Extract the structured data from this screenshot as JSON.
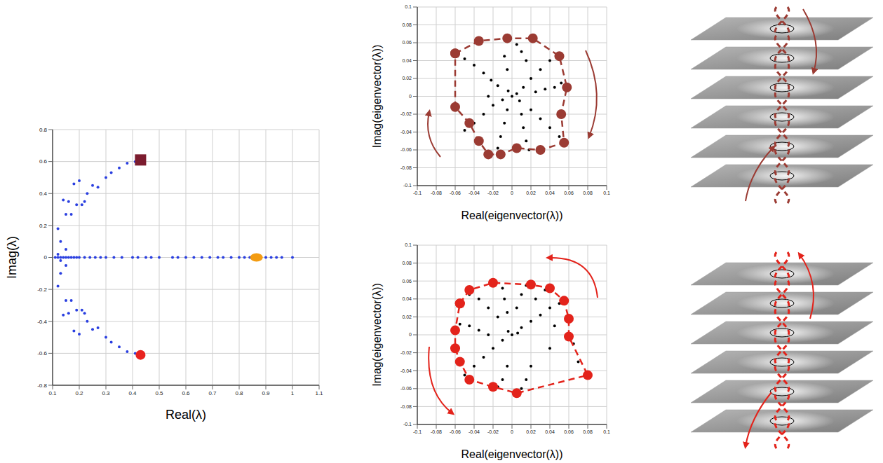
{
  "chart_data": [
    {
      "type": "scatter",
      "x_label": "Real(λ)",
      "y_label": "Imag(λ)",
      "xlim": [
        0.1,
        1.1
      ],
      "xticks": [
        0.1,
        0.2,
        0.3,
        0.4,
        0.5,
        0.6,
        0.7,
        0.8,
        0.9,
        1,
        1.1
      ],
      "ylim": [
        -0.8,
        0.8
      ],
      "yticks": [
        -0.8,
        -0.6,
        -0.4,
        -0.2,
        0,
        0.2,
        0.4,
        0.6,
        0.8
      ],
      "grid": true,
      "series": [
        {
          "color": "#2a3fe0",
          "marker": "dot",
          "x": [
            0.12,
            0.13,
            0.14,
            0.15,
            0.16,
            0.17,
            0.18,
            0.19,
            0.2,
            0.21,
            0.22,
            0.23,
            0.25,
            0.27,
            0.3,
            0.32,
            0.35,
            0.38,
            0.41,
            0.12,
            0.13,
            0.14,
            0.15,
            0.16,
            0.17,
            0.18,
            0.19,
            0.2,
            0.21,
            0.22,
            0.23,
            0.25,
            0.27,
            0.3,
            0.32,
            0.35,
            0.38,
            0.41,
            0.11,
            0.12,
            0.13,
            0.14,
            0.15,
            0.16,
            0.17,
            0.18,
            0.19,
            0.2,
            0.22,
            0.24,
            0.26,
            0.28,
            0.3,
            0.33,
            0.36,
            0.4,
            0.42,
            0.45,
            0.47,
            0.5,
            0.55,
            0.57,
            0.6,
            0.63,
            0.66,
            0.69,
            0.72,
            0.74,
            0.77,
            0.8,
            0.82,
            0.84,
            0.9,
            0.92,
            0.94,
            0.96,
            1,
            0.12,
            0.13,
            0.15,
            0.15
          ],
          "y": [
            0.18,
            0.1,
            0.36,
            0.27,
            0.35,
            0.27,
            0.46,
            0.33,
            0.48,
            0.33,
            0.35,
            0.4,
            0.45,
            0.44,
            0.5,
            0.53,
            0.56,
            0.59,
            0.6,
            -0.18,
            -0.1,
            -0.36,
            -0.27,
            -0.35,
            -0.27,
            -0.46,
            -0.33,
            -0.48,
            -0.33,
            -0.35,
            -0.4,
            -0.45,
            -0.44,
            -0.5,
            -0.53,
            -0.56,
            -0.59,
            -0.6,
            0,
            0,
            0,
            0,
            0,
            0,
            0,
            0,
            0,
            0,
            0,
            0,
            0,
            0,
            0,
            0,
            0,
            0,
            0,
            0,
            0,
            0,
            0,
            0,
            0,
            0,
            0,
            0,
            0,
            0,
            0,
            0,
            0,
            0,
            0,
            0,
            0,
            0,
            0,
            0.02,
            -0.02,
            0.05,
            -0.05
          ]
        },
        {
          "color": "#7b1c2e",
          "marker": "square",
          "x": [
            0.43
          ],
          "y": [
            0.61
          ]
        },
        {
          "color": "#e8231f",
          "marker": "circle",
          "x": [
            0.43
          ],
          "y": [
            -0.61
          ]
        },
        {
          "color": "#f39c12",
          "marker": "ellipse",
          "x": [
            0.865
          ],
          "y": [
            0
          ]
        }
      ]
    },
    {
      "type": "scatter",
      "x_label": "Real(eigenvector(λ))",
      "y_label": "Imag(eigenvector(λ))",
      "xlim": [
        -0.1,
        0.1
      ],
      "xticks": [
        -0.1,
        -0.08,
        -0.06,
        -0.04,
        -0.02,
        0,
        0.02,
        0.04,
        0.06,
        0.08,
        0.1
      ],
      "ylim": [
        -0.1,
        0.1
      ],
      "yticks": [
        -0.1,
        -0.08,
        -0.06,
        -0.04,
        -0.02,
        0,
        0.02,
        0.04,
        0.06,
        0.08,
        0.1
      ],
      "grid": true,
      "series": [
        {
          "color": "#000000",
          "marker": "dot",
          "x": [
            0,
            0.005,
            -0.004,
            0.008,
            -0.01,
            0.012,
            -0.015,
            0.02,
            -0.022,
            0.03,
            -0.03,
            0.04,
            -0.04,
            -0.05,
            0.015,
            0.01,
            0.005,
            -0.005,
            -0.008,
            0.025,
            0.035,
            0.045,
            0.052,
            0.02,
            0.03,
            0.04,
            0.05,
            0.01,
            0.012,
            0.015,
            0.018,
            -0.005,
            -0.008,
            -0.012,
            -0.015,
            -0.02,
            -0.03,
            -0.04,
            -0.05,
            -0.025
          ],
          "y": [
            0,
            0.003,
            0.006,
            -0.005,
            -0.004,
            0.01,
            0.012,
            0.02,
            0.018,
            0.03,
            0.026,
            0.04,
            0.035,
            0.042,
            0.04,
            0.05,
            0.058,
            0.03,
            0.045,
            0.005,
            0.008,
            0.01,
            0.015,
            -0.015,
            -0.025,
            -0.035,
            -0.045,
            -0.02,
            -0.035,
            -0.05,
            -0.06,
            -0.015,
            -0.03,
            -0.045,
            -0.058,
            -0.01,
            -0.02,
            -0.03,
            -0.038,
            0
          ]
        },
        {
          "color": "#9b3b33",
          "marker": "circle",
          "line_style": "dashed",
          "x": [
            -0.06,
            -0.035,
            -0.005,
            0.022,
            0.05,
            0.058,
            0.052,
            0.055,
            0.03,
            0.005,
            -0.012,
            -0.025,
            -0.035,
            -0.045,
            -0.06
          ],
          "y": [
            0.048,
            0.062,
            0.065,
            0.065,
            0.045,
            0.01,
            -0.02,
            -0.052,
            -0.06,
            -0.058,
            -0.065,
            -0.065,
            -0.05,
            -0.03,
            -0.012
          ]
        }
      ]
    },
    {
      "type": "scatter",
      "x_label": "Real(eigenvector(λ))",
      "y_label": "Imag(eigenvector(λ))",
      "xlim": [
        -0.1,
        0.1
      ],
      "xticks": [
        -0.1,
        -0.08,
        -0.06,
        -0.04,
        -0.02,
        0,
        0.02,
        0.04,
        0.06,
        0.08,
        0.1
      ],
      "ylim": [
        -0.1,
        0.1
      ],
      "yticks": [
        -0.1,
        -0.08,
        -0.06,
        -0.04,
        -0.02,
        0,
        0.02,
        0.04,
        0.06,
        0.08,
        0.1
      ],
      "grid": true,
      "series": [
        {
          "color": "#000000",
          "marker": "dot",
          "x": [
            0,
            -0.004,
            0.006,
            0.01,
            -0.01,
            0.02,
            0.03,
            0.04,
            0.05,
            0.06,
            0.045,
            0.065,
            0.07,
            0.04,
            0.02,
            0.015,
            0.01,
            -0.005,
            -0.01,
            -0.015,
            -0.02,
            -0.03,
            -0.04,
            -0.05,
            -0.025,
            -0.035,
            -0.045,
            -0.055,
            -0.015,
            -0.025,
            -0.035,
            -0.045,
            -0.005,
            -0.008,
            -0.01,
            0.005,
            0.01,
            0.015,
            0.025,
            0.035
          ],
          "y": [
            0,
            0.004,
            0.002,
            0.008,
            -0.006,
            0.015,
            0.022,
            0.03,
            0.035,
            0.02,
            0.01,
            -0.01,
            -0.03,
            -0.015,
            -0.035,
            -0.05,
            -0.06,
            -0.035,
            -0.05,
            -0.058,
            -0.015,
            -0.025,
            -0.035,
            -0.045,
            0,
            0.005,
            0.01,
            0.012,
            0.02,
            0.03,
            0.04,
            0.045,
            0.025,
            0.04,
            0.052,
            0.03,
            0.045,
            0.055,
            0.04,
            0.05
          ]
        },
        {
          "color": "#e3231b",
          "marker": "circle",
          "line_style": "dashed",
          "x": [
            -0.055,
            -0.045,
            -0.02,
            0.02,
            0.04,
            0.055,
            0.06,
            0.06,
            0.08,
            0.005,
            -0.02,
            -0.045,
            -0.055,
            -0.06,
            -0.06
          ],
          "y": [
            0.035,
            0.05,
            0.058,
            0.056,
            0.052,
            0.038,
            0.018,
            -0.002,
            -0.045,
            -0.065,
            -0.058,
            -0.05,
            -0.03,
            -0.015,
            0.005
          ]
        }
      ]
    }
  ]
}
